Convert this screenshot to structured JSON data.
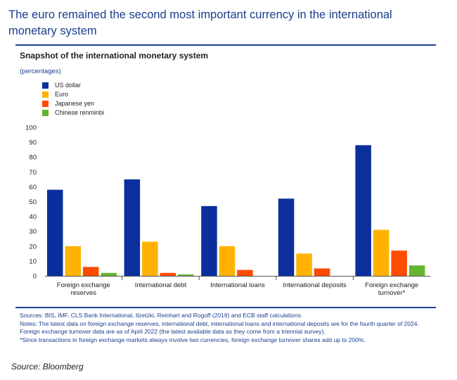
{
  "headline": "The euro remained the second most important currency in the international monetary system",
  "chart_data": {
    "type": "bar",
    "title": "Snapshot of the international monetary system",
    "units": "(percentages)",
    "categories": [
      [
        "Foreign exchange",
        "reserves"
      ],
      [
        "International debt"
      ],
      [
        "International loans"
      ],
      [
        "International deposits"
      ],
      [
        "Foreign exchange",
        "turnover*"
      ]
    ],
    "series": [
      {
        "name": "US dollar",
        "color": "#0b2f9c",
        "values": [
          58,
          65,
          47,
          52,
          88
        ]
      },
      {
        "name": "Euro",
        "color": "#ffb300",
        "values": [
          20,
          23,
          20,
          15,
          31
        ]
      },
      {
        "name": "Japanese yen",
        "color": "#ff4b00",
        "values": [
          6,
          2,
          4,
          5,
          17
        ]
      },
      {
        "name": "Chinese renminbi",
        "color": "#65b32e",
        "values": [
          2,
          1,
          0,
          0,
          7
        ]
      }
    ],
    "ylim": [
      0,
      100
    ],
    "yticks": [
      0,
      10,
      20,
      30,
      40,
      50,
      60,
      70,
      80,
      90,
      100
    ],
    "legend_position": "top-left",
    "grid": false
  },
  "notes": [
    "Sources: BIS, IMF, CLS Bank International, Ilzetzki, Reinhart and Rogoff (2019) and ECB staff calculations.",
    "Notes: The latest data on foreign exchange reserves, international debt, international loans and international deposits are for the fourth quarter of 2024. Foreign exchange turnover data are as of April 2022 (the latest available data as they come from a triennial survey).",
    "*Since transactions in foreign exchange markets always involve two currencies, foreign exchange turnover shares add up to 200%."
  ],
  "source": "Source: Bloomberg"
}
